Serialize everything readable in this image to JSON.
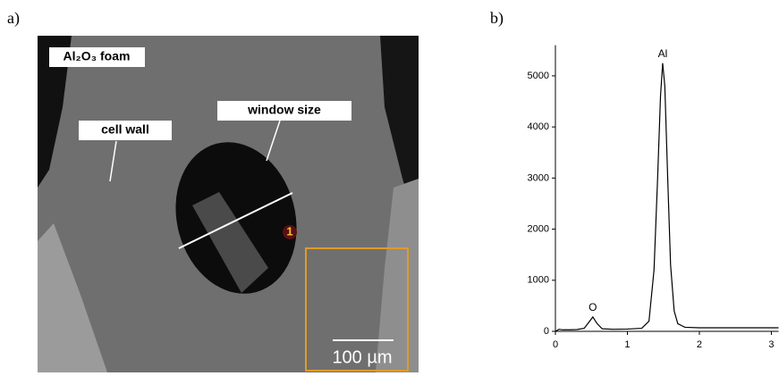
{
  "panel_a": {
    "label": "a)",
    "sample_label": "Al₂O₃ foam",
    "cell_wall_label": "cell wall",
    "window_label": "window size",
    "point_label": "1",
    "scale_label": "100 µm"
  },
  "chart_data": {
    "type": "line",
    "panel_label": "b)",
    "x": [
      0,
      0.05,
      0.1,
      0.2,
      0.3,
      0.4,
      0.45,
      0.52,
      0.58,
      0.65,
      0.8,
      1.0,
      1.2,
      1.3,
      1.37,
      1.42,
      1.46,
      1.49,
      1.52,
      1.56,
      1.6,
      1.65,
      1.7,
      1.8,
      2.0,
      2.5,
      3.1
    ],
    "series": [
      {
        "color": "#000000",
        "values": [
          0,
          40,
          30,
          30,
          35,
          60,
          150,
          280,
          150,
          50,
          40,
          45,
          60,
          200,
          1200,
          3000,
          4600,
          5250,
          4800,
          3000,
          1300,
          400,
          150,
          80,
          70,
          70,
          70
        ]
      }
    ],
    "annotations": [
      {
        "text": "O",
        "x": 0.52
      },
      {
        "text": "Al",
        "x": 1.49
      }
    ],
    "xlim": [
      0,
      3.1
    ],
    "xticks": [
      0,
      1,
      2,
      3
    ],
    "ylim": [
      0,
      5600
    ],
    "yticks": [
      0,
      1000,
      2000,
      3000,
      4000,
      5000
    ]
  }
}
